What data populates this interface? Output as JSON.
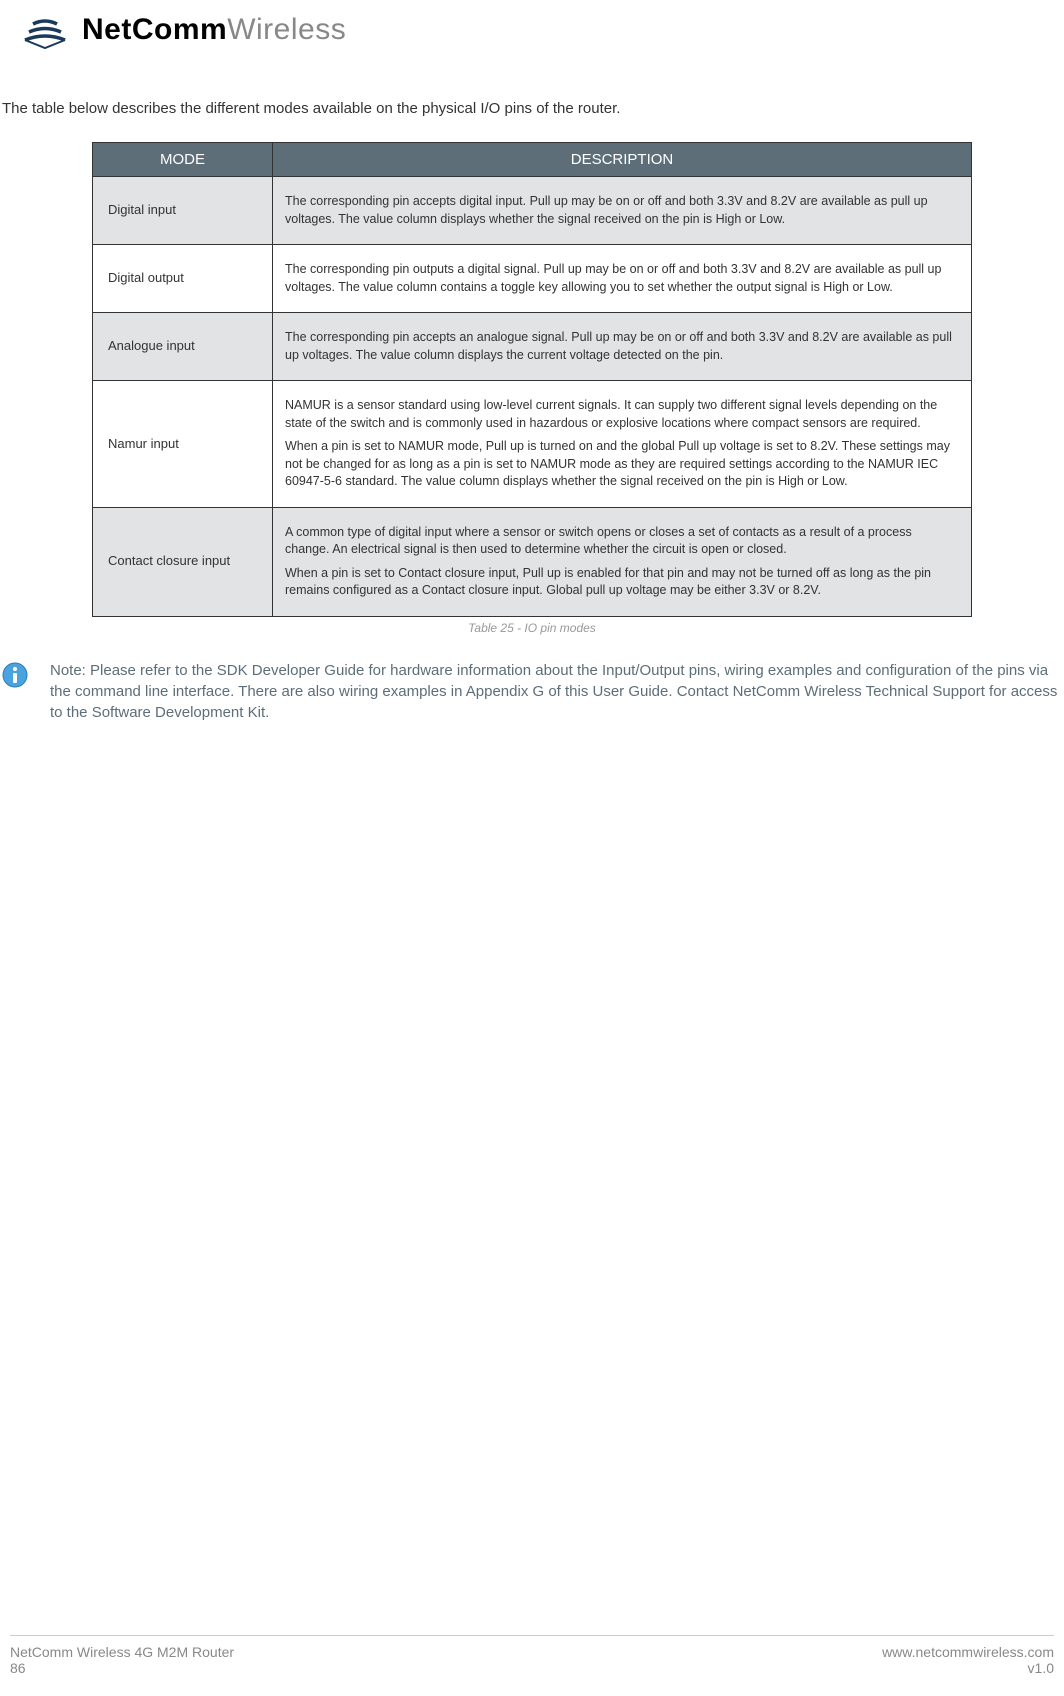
{
  "brand": {
    "bold": "NetComm",
    "light": "Wireless"
  },
  "intro_text": "The table below describes the different modes available on the physical I/O pins of the router.",
  "table": {
    "header_bg": "#5d6e78",
    "row_alt_bg": "#e2e3e5",
    "row_bg": "#ffffff",
    "columns": [
      "MODE",
      "DESCRIPTION"
    ],
    "rows": [
      {
        "mode": "Digital input",
        "desc": [
          "The corresponding pin accepts digital input. Pull up may be on or off and both 3.3V and 8.2V are available as pull up voltages. The value column displays whether the signal received on the pin is High or Low."
        ]
      },
      {
        "mode": "Digital output",
        "desc": [
          "The corresponding pin outputs a digital signal. Pull up may be on or off and both 3.3V and 8.2V are available as pull up voltages. The value column contains a toggle key allowing you to set whether the output signal is High or Low."
        ]
      },
      {
        "mode": "Analogue input",
        "desc": [
          "The corresponding pin accepts an analogue signal. Pull up may be on or off and both 3.3V and 8.2V are available as pull up voltages. The value column displays the current voltage detected on the pin."
        ]
      },
      {
        "mode": "Namur input",
        "desc": [
          "NAMUR is a sensor standard using low-level current signals. It can supply two different signal levels depending on the state of the switch and is commonly used in hazardous or explosive locations where compact sensors are required.",
          "When a pin is set to NAMUR mode, Pull up is turned on and the global Pull up voltage is set to 8.2V. These settings may not be changed for as long as a pin is set to NAMUR mode as they are required settings according to the NAMUR IEC 60947-5-6 standard. The value column displays whether the signal received on the pin is High or Low."
        ]
      },
      {
        "mode": "Contact closure input",
        "desc": [
          "A common type of digital input where a sensor or switch opens or closes a set of contacts as a result of a process change. An electrical signal is then used to determine whether the circuit is open or closed.",
          "When a pin is set to Contact closure input, Pull up is enabled for that pin and may not be turned off as long as the pin remains configured as a Contact closure input. Global pull up voltage may be either 3.3V or 8.2V."
        ]
      }
    ],
    "caption": "Table 25 - IO pin modes"
  },
  "note": {
    "color": "#5d6e78",
    "text": "Note: Please refer to the SDK Developer Guide for hardware information about the Input/Output pins, wiring examples and configuration of the pins via the command line interface. There are also wiring examples in Appendix G of this User Guide. Contact NetComm Wireless Technical Support for access to the Software Development Kit."
  },
  "footer": {
    "product": "NetComm Wireless 4G M2M Router",
    "page": "86",
    "url": "www.netcommwireless.com",
    "version": "v1.0"
  }
}
